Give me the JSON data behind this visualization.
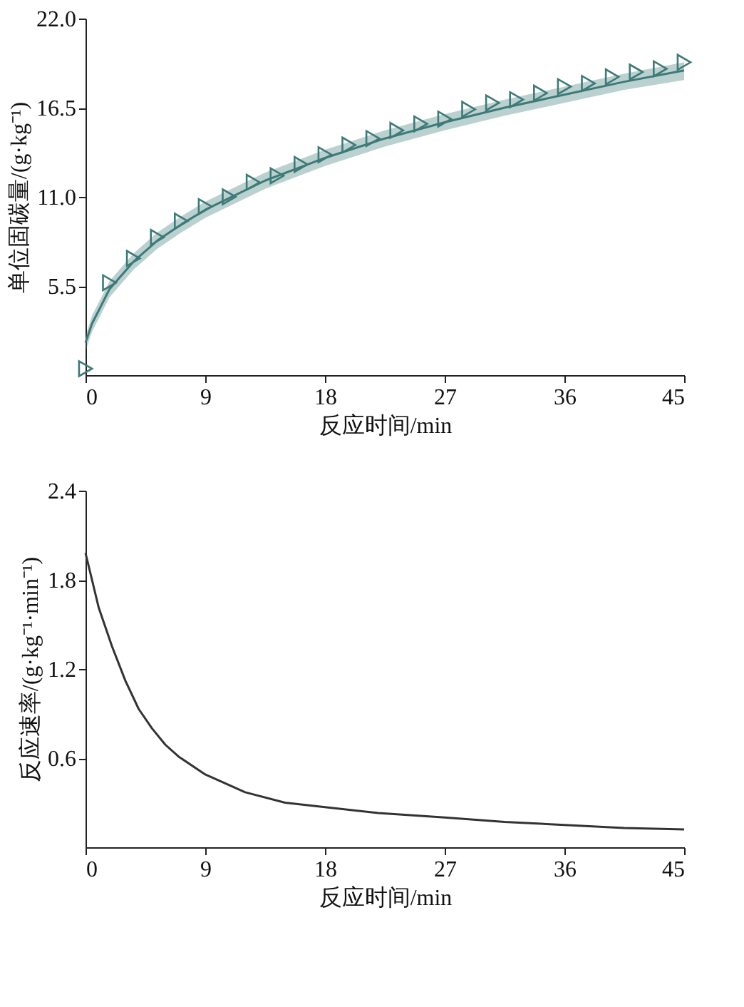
{
  "chart_data": [
    {
      "type": "scatter",
      "xlabel": "反应时间/min",
      "ylabel": "单位固碳量/(g·kg⁻¹)",
      "xlim": [
        0,
        45
      ],
      "xticks": [
        0,
        9,
        18,
        27,
        36,
        45
      ],
      "ylim": [
        0,
        22
      ],
      "yticks": [
        {
          "value": 5.5,
          "label": "5.5"
        },
        {
          "value": 11,
          "label": "11.0"
        },
        {
          "value": 16.5,
          "label": "16.5"
        },
        {
          "value": 22,
          "label": "22.0"
        }
      ],
      "grid": false,
      "series": [
        {
          "type": "line",
          "color": "#3d7a78",
          "line_style": "solid",
          "x": [
            0,
            0.5,
            1,
            1.8,
            3.6,
            5.4,
            7.2,
            9,
            13.5,
            18,
            22.5,
            27,
            31.5,
            36,
            40.5,
            45
          ],
          "values": [
            2.0,
            3.2,
            4.0,
            5.3,
            7.0,
            8.3,
            9.3,
            10.2,
            12.0,
            13.4,
            14.6,
            15.6,
            16.5,
            17.3,
            18.1,
            18.8
          ],
          "lower": [
            1.5,
            2.7,
            3.5,
            4.8,
            6.5,
            7.8,
            8.8,
            9.7,
            11.5,
            12.9,
            14.1,
            15.1,
            16.0,
            16.8,
            17.6,
            18.2
          ],
          "upper": [
            2.4,
            3.7,
            4.5,
            5.8,
            7.5,
            8.8,
            9.8,
            10.7,
            12.5,
            13.9,
            15.1,
            16.1,
            17.0,
            17.8,
            18.6,
            19.3
          ]
        },
        {
          "type": "scatter",
          "color": "#3d7a78",
          "marker": "triangle",
          "x": [
            0,
            1.8,
            3.6,
            5.4,
            7.2,
            9,
            10.8,
            12.6,
            14.4,
            16.2,
            18,
            19.8,
            21.6,
            23.4,
            25.2,
            27,
            28.8,
            30.6,
            32.4,
            34.2,
            36,
            37.8,
            39.6,
            41.4,
            43.2,
            45
          ],
          "values": [
            0.4,
            5.7,
            7.2,
            8.5,
            9.5,
            10.4,
            11.0,
            11.9,
            12.3,
            13.0,
            13.6,
            14.2,
            14.6,
            15.1,
            15.5,
            15.8,
            16.4,
            16.8,
            17.0,
            17.4,
            17.8,
            18.0,
            18.4,
            18.7,
            18.9,
            19.3
          ]
        }
      ]
    },
    {
      "type": "line",
      "xlabel": "反应时间/min",
      "ylabel": "反应速率/(g·kg⁻¹·min⁻¹)",
      "xlim": [
        0,
        45
      ],
      "xticks": [
        0,
        9,
        18,
        27,
        36,
        45
      ],
      "ylim": [
        0,
        2.4
      ],
      "yticks": [
        0.6,
        1.2,
        1.8,
        2.4
      ],
      "grid": false,
      "line_style": "solid",
      "series": [
        {
          "color": "#333333",
          "x": [
            0,
            1,
            2,
            3,
            4,
            5,
            6,
            7,
            9,
            12,
            15,
            18,
            22,
            27,
            31.5,
            36,
            40.5,
            45
          ],
          "values": [
            1.98,
            1.61,
            1.35,
            1.12,
            0.93,
            0.8,
            0.69,
            0.61,
            0.49,
            0.37,
            0.3,
            0.27,
            0.23,
            0.2,
            0.17,
            0.15,
            0.13,
            0.12
          ]
        }
      ]
    }
  ]
}
